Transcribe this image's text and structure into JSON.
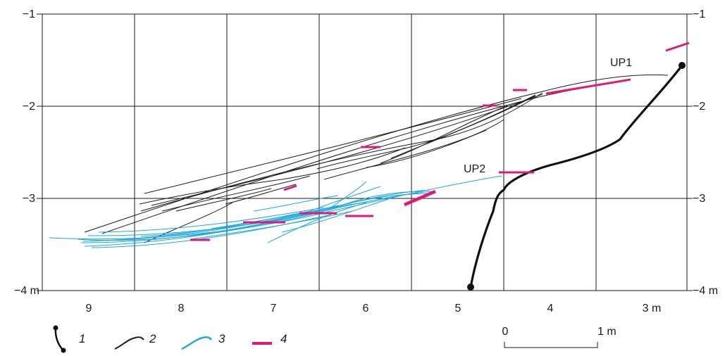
{
  "y_axis": {
    "left_labels": [
      "−1",
      "−2",
      "−3",
      "−4 m"
    ],
    "right_labels": [
      "−1",
      "−2",
      "−3",
      "−4 m"
    ]
  },
  "x_axis": {
    "labels": [
      "9",
      "8",
      "7",
      "6",
      "5",
      "4",
      "3 m"
    ]
  },
  "annotations": {
    "up1": "UP1",
    "up2": "UP2"
  },
  "legend": {
    "items": [
      {
        "number": "1",
        "icon": "borehole-icon"
      },
      {
        "number": "2",
        "icon": "black-line-icon"
      },
      {
        "number": "3",
        "icon": "blue-line-icon"
      },
      {
        "number": "4",
        "icon": "magenta-bar-icon"
      }
    ]
  },
  "scale_bar": {
    "zero": "0",
    "one": "1 m"
  },
  "colors": {
    "grid": "#1a1a1a",
    "black_lines": "#1a1a1a",
    "blue_lines": "#1ea7e0",
    "magenta_bars": "#e0187a"
  }
}
